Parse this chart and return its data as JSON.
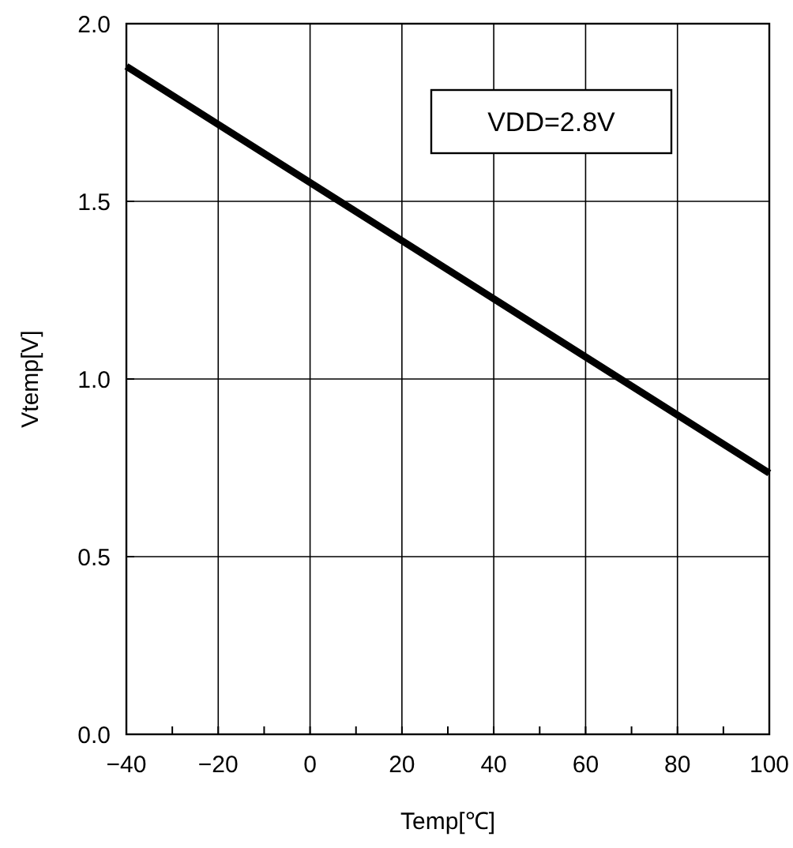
{
  "chart_data": {
    "type": "line",
    "xlabel": "Temp[℃]",
    "ylabel": "Vtemp[V]",
    "annotations": [
      "VDD=2.8V"
    ],
    "x": [
      -40,
      100
    ],
    "series": [
      {
        "color": "#000000",
        "values": [
          1.88,
          0.735
        ]
      }
    ],
    "xlim": [
      -40,
      100
    ],
    "xticks": [
      {
        "value": -40,
        "label": "−40"
      },
      {
        "value": -30,
        "label": null
      },
      {
        "value": -20,
        "label": "−20"
      },
      {
        "value": -10,
        "label": null
      },
      0,
      {
        "value": 10,
        "label": null
      },
      20,
      {
        "value": 30,
        "label": null
      },
      40,
      {
        "value": 50,
        "label": null
      },
      60,
      {
        "value": 70,
        "label": null
      },
      80,
      {
        "value": 90,
        "label": null
      },
      100
    ],
    "ylim": [
      0,
      2
    ],
    "yticks": [
      {
        "value": 0,
        "label": "0.0"
      },
      {
        "value": 0.5,
        "label": "0.5"
      },
      {
        "value": 1,
        "label": "1.0"
      },
      {
        "value": 1.5,
        "label": "1.5"
      },
      {
        "value": 2,
        "label": "2.0"
      }
    ],
    "grid": true,
    "line_style": "solid",
    "marker": "none"
  }
}
